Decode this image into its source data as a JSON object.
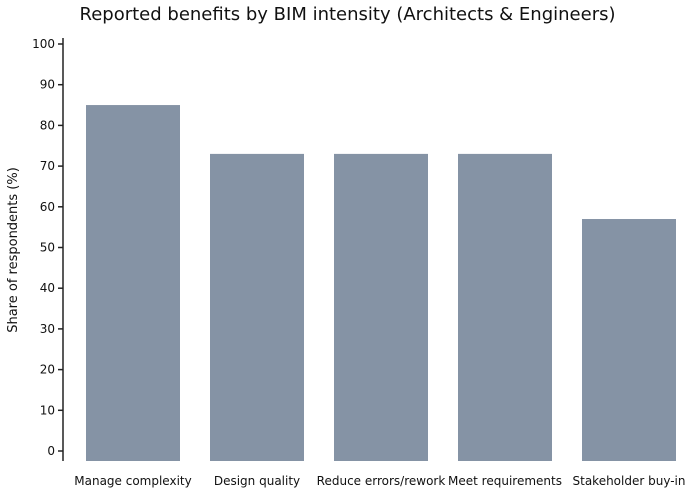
{
  "chart_data": {
    "type": "bar",
    "title": "Reported benefits by BIM intensity (Architects & Engineers)",
    "xlabel": "",
    "ylabel": "Share of respondents (%)",
    "categories": [
      "Manage complexity",
      "Design quality",
      "Reduce errors/rework",
      "Meet requirements",
      "Stakeholder buy-in"
    ],
    "values": [
      85,
      73,
      73,
      73,
      57
    ],
    "ylim": [
      0,
      100
    ],
    "yticks": [
      0,
      10,
      20,
      30,
      40,
      50,
      60,
      70,
      80,
      90,
      100
    ],
    "grid": false,
    "bar_color": "#8593a5"
  }
}
